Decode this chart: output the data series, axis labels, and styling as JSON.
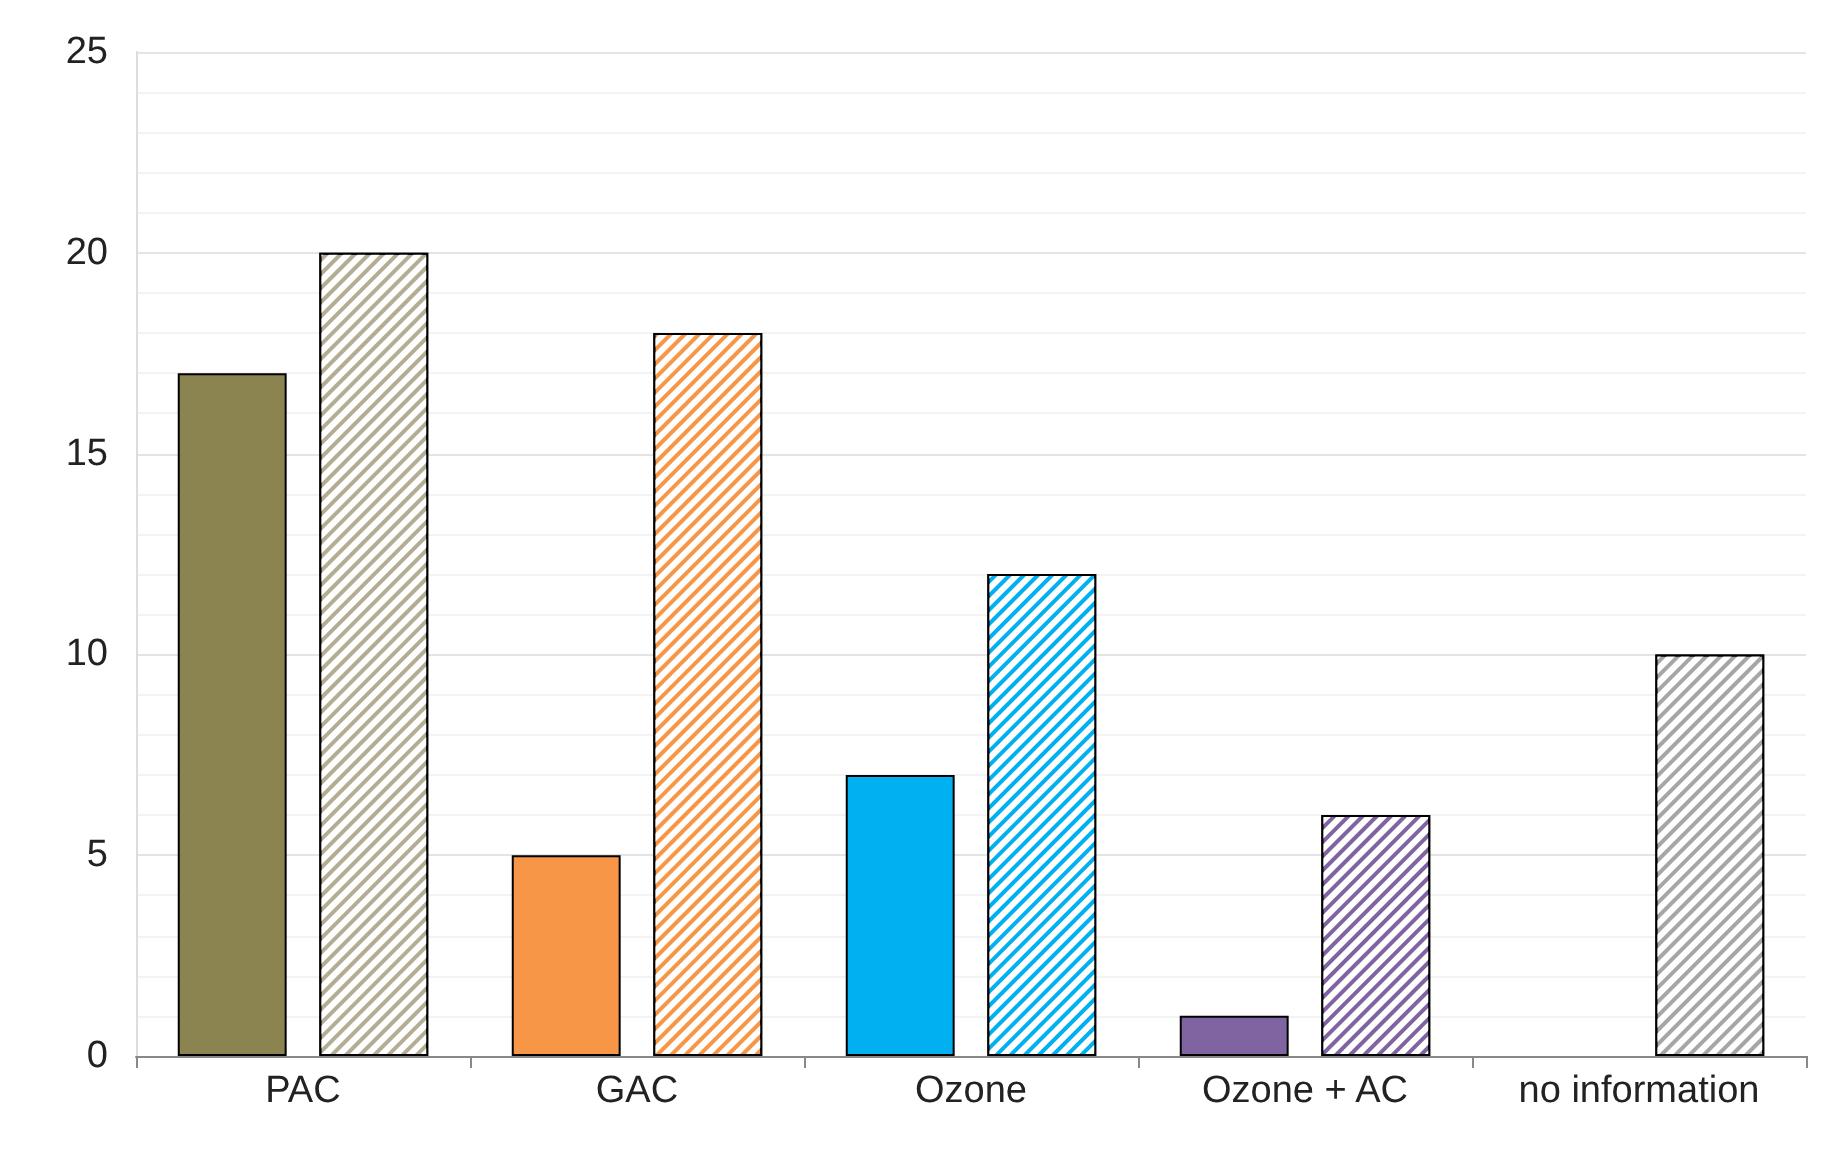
{
  "chart_data": {
    "type": "bar",
    "categories": [
      "PAC",
      "GAC",
      "Ozone",
      "Ozone + AC",
      "no information"
    ],
    "series": [
      {
        "colors": [
          "#8b8450",
          "#f79646",
          "#00b0f0",
          "#8064a2",
          null
        ],
        "values": [
          17,
          5,
          7,
          1,
          null
        ]
      },
      {
        "colors": [
          "#b3ae93",
          "#f79646",
          "#00b0f0",
          "#8064a2",
          "#a6a6a6"
        ],
        "values": [
          20,
          18,
          12,
          6,
          10
        ]
      }
    ],
    "ylim": [
      0,
      25
    ],
    "yticks": [
      0,
      5,
      10,
      15,
      20,
      25
    ],
    "grid": "y"
  }
}
